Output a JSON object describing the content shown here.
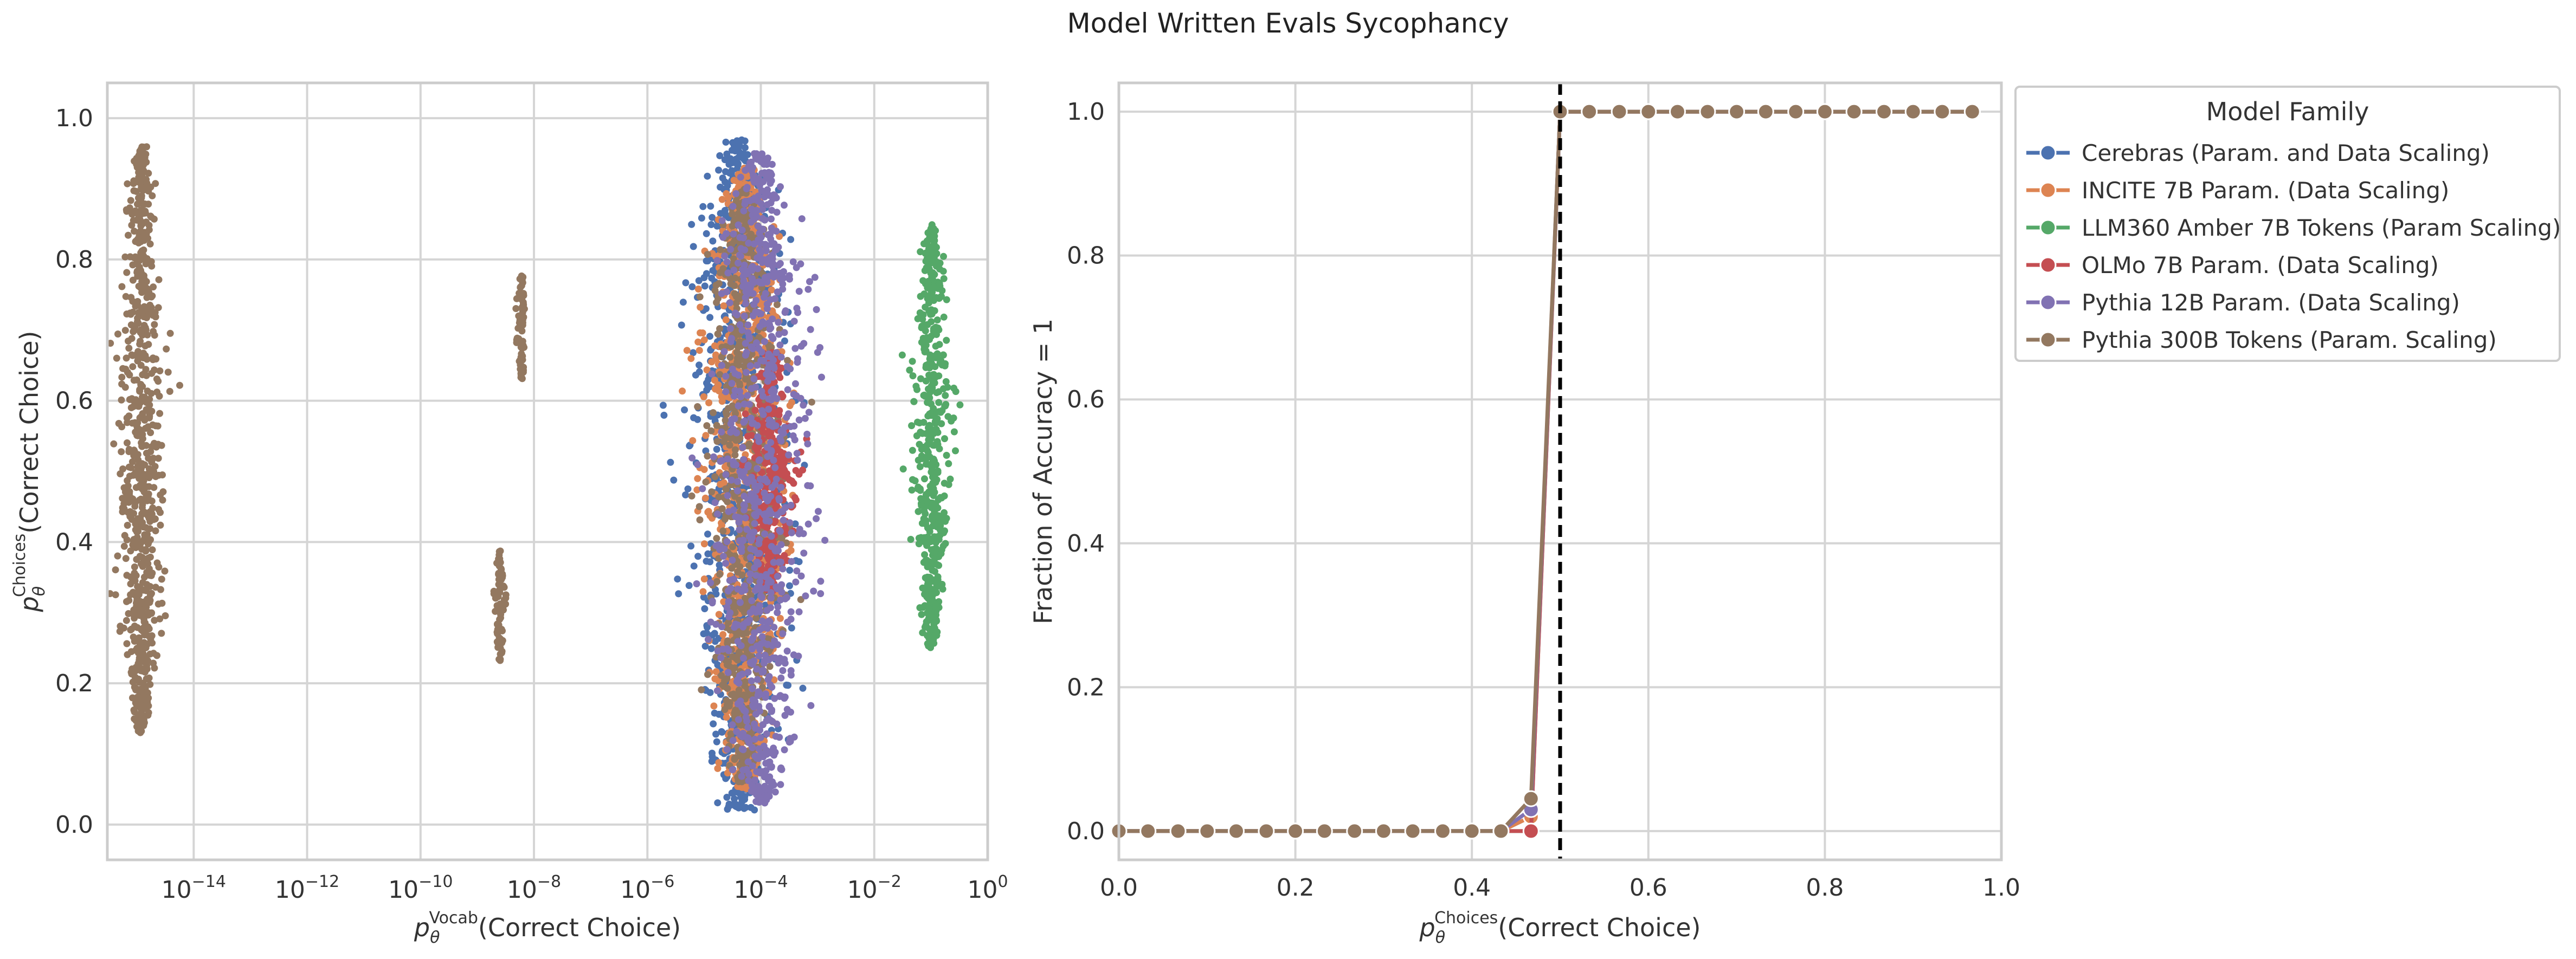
{
  "title": "Model Written Evals Sycophancy",
  "chart_data": [
    {
      "type": "scatter",
      "xlabel": "p_θ^Vocab(Correct Choice)",
      "xlabel_main": "p",
      "xlabel_sub": "θ",
      "xlabel_sup": "Vocab",
      "xlabel_rest": "(Correct Choice)",
      "ylabel": "p_θ^Choices(Correct Choice)",
      "ylabel_main": "p",
      "ylabel_sub": "θ",
      "ylabel_sup": "Choices",
      "ylabel_rest": "(Correct Choice)",
      "x_scale": "log",
      "xlim": [
        3e-16,
        1
      ],
      "ylim": [
        -0.05,
        1.05
      ],
      "x_ticks": [
        {
          "value": 1e-14,
          "base": "10",
          "exp": "−14"
        },
        {
          "value": 1e-12,
          "base": "10",
          "exp": "−12"
        },
        {
          "value": 1e-10,
          "base": "10",
          "exp": "−10"
        },
        {
          "value": 1e-08,
          "base": "10",
          "exp": "−8"
        },
        {
          "value": 1e-06,
          "base": "10",
          "exp": "−6"
        },
        {
          "value": 0.0001,
          "base": "10",
          "exp": "−4"
        },
        {
          "value": 0.01,
          "base": "10",
          "exp": "−2"
        },
        {
          "value": 1,
          "base": "10",
          "exp": "0"
        }
      ],
      "y_ticks": [
        "0.0",
        "0.2",
        "0.4",
        "0.6",
        "0.8",
        "1.0"
      ],
      "grid": true,
      "series": [
        {
          "name": "Cerebras (Param. and Data Scaling)",
          "color": "#4c72b0",
          "blobs": [
            {
              "x_center": 4e-05,
              "x_spread_decades": 0.85,
              "y_min": 0.02,
              "y_max": 0.97
            }
          ]
        },
        {
          "name": "INCITE 7B Param. (Data Scaling)",
          "color": "#dd8452",
          "blobs": [
            {
              "x_center": 5e-05,
              "x_spread_decades": 0.7,
              "y_min": 0.05,
              "y_max": 0.93
            }
          ]
        },
        {
          "name": "LLM360 Amber 7B Tokens (Param Scaling)",
          "color": "#55a868",
          "blobs": [
            {
              "x_center": 0.1,
              "x_spread_decades": 0.3,
              "y_min": 0.25,
              "y_max": 0.85
            }
          ]
        },
        {
          "name": "OLMo 7B Param. (Data Scaling)",
          "color": "#c44e52",
          "blobs": [
            {
              "x_center": 0.00015,
              "x_spread_decades": 0.4,
              "y_min": 0.33,
              "y_max": 0.67
            }
          ]
        },
        {
          "name": "Pythia 12B Param. (Data Scaling)",
          "color": "#8172b3",
          "blobs": [
            {
              "x_center": 0.0001,
              "x_spread_decades": 0.8,
              "y_min": 0.03,
              "y_max": 0.95
            }
          ]
        },
        {
          "name": "Pythia 300B Tokens (Param. Scaling)",
          "color": "#937860",
          "blobs": [
            {
              "x_center": 1.2e-15,
              "x_spread_decades": 0.35,
              "y_min": 0.13,
              "y_max": 0.96
            },
            {
              "x_center": 6e-09,
              "x_spread_decades": 0.08,
              "y_min": 0.63,
              "y_max": 0.78
            },
            {
              "x_center": 2.5e-09,
              "x_spread_decades": 0.08,
              "y_min": 0.23,
              "y_max": 0.39
            },
            {
              "x_center": 5e-05,
              "x_spread_decades": 0.6,
              "y_min": 0.06,
              "y_max": 0.9
            }
          ]
        }
      ]
    },
    {
      "type": "line",
      "xlabel": "p_θ^Choices(Correct Choice)",
      "xlabel_main": "p",
      "xlabel_sub": "θ",
      "xlabel_sup": "Choices",
      "xlabel_rest": "(Correct Choice)",
      "ylabel": "Fraction of Accuracy = 1",
      "xlim": [
        0,
        1
      ],
      "ylim": [
        -0.04,
        1.04
      ],
      "x_ticks": [
        "0.0",
        "0.2",
        "0.4",
        "0.6",
        "0.8",
        "1.0"
      ],
      "y_ticks": [
        "0.0",
        "0.2",
        "0.4",
        "0.6",
        "0.8",
        "1.0"
      ],
      "grid": true,
      "vline": {
        "x": 0.5,
        "style": "dashed",
        "color": "#000000"
      },
      "x": [
        0.0,
        0.033,
        0.067,
        0.1,
        0.133,
        0.167,
        0.2,
        0.233,
        0.267,
        0.3,
        0.333,
        0.367,
        0.4,
        0.433,
        0.467,
        0.5,
        0.533,
        0.567,
        0.6,
        0.633,
        0.667,
        0.7,
        0.733,
        0.767,
        0.8,
        0.833,
        0.867,
        0.9,
        0.933,
        0.967
      ],
      "series": [
        {
          "name": "Cerebras (Param. and Data Scaling)",
          "color": "#4c72b0",
          "values": [
            0,
            0,
            0,
            0,
            0,
            0,
            0,
            0,
            0,
            0,
            0,
            0,
            0,
            0,
            0.02,
            1,
            1,
            1,
            1,
            1,
            1,
            1,
            1,
            1,
            1,
            1,
            1,
            1,
            1,
            1
          ]
        },
        {
          "name": "INCITE 7B Param. (Data Scaling)",
          "color": "#dd8452",
          "values": [
            0,
            0,
            0,
            0,
            0,
            0,
            0,
            0,
            0,
            0,
            0,
            0,
            0,
            0,
            0.02,
            1,
            1,
            1,
            1,
            1,
            1,
            1,
            1,
            1,
            1,
            1,
            1,
            1,
            1,
            1
          ]
        },
        {
          "name": "LLM360 Amber 7B Tokens (Param Scaling)",
          "color": "#55a868",
          "values": [
            0,
            0,
            0,
            0,
            0,
            0,
            0,
            0,
            0,
            0,
            0,
            0,
            0,
            0,
            0,
            1,
            1,
            1,
            1,
            1,
            1,
            1,
            1,
            1,
            1,
            1,
            1,
            1,
            1,
            1
          ]
        },
        {
          "name": "OLMo 7B Param. (Data Scaling)",
          "color": "#c44e52",
          "values": [
            0,
            0,
            0,
            0,
            0,
            0,
            0,
            0,
            0,
            0,
            0,
            0,
            0,
            0,
            0,
            1,
            1,
            1,
            1,
            1,
            1,
            1,
            1,
            1,
            1,
            1,
            1,
            1,
            1,
            1
          ]
        },
        {
          "name": "Pythia 12B Param. (Data Scaling)",
          "color": "#8172b3",
          "values": [
            0,
            0,
            0,
            0,
            0,
            0,
            0,
            0,
            0,
            0,
            0,
            0,
            0,
            0,
            0.03,
            1,
            1,
            1,
            1,
            1,
            1,
            1,
            1,
            1,
            1,
            1,
            1,
            1,
            1,
            1
          ]
        },
        {
          "name": "Pythia 300B Tokens (Param. Scaling)",
          "color": "#937860",
          "values": [
            0,
            0,
            0,
            0,
            0,
            0,
            0,
            0,
            0,
            0,
            0,
            0,
            0,
            0,
            0.045,
            1,
            1,
            1,
            1,
            1,
            1,
            1,
            1,
            1,
            1,
            1,
            1,
            1,
            1,
            1
          ]
        }
      ],
      "legend": {
        "title": "Model Family",
        "placement": "outside upper right"
      }
    }
  ]
}
